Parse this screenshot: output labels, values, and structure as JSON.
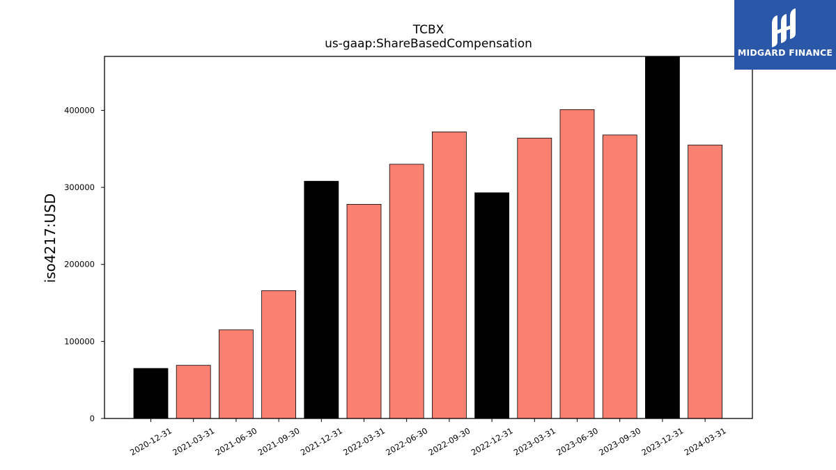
{
  "chart_data": {
    "type": "bar",
    "title": "TCBX",
    "subtitle": "us-gaap:ShareBasedCompensation",
    "ylabel": "iso4217:USD",
    "xlabel": "",
    "ylim": [
      0,
      470000
    ],
    "yticks": [
      0,
      100000,
      200000,
      300000,
      400000
    ],
    "categories": [
      "2020-12-31",
      "2021-03-31",
      "2021-06-30",
      "2021-09-30",
      "2021-12-31",
      "2022-03-31",
      "2022-06-30",
      "2022-09-30",
      "2022-12-31",
      "2023-03-31",
      "2023-06-30",
      "2023-09-30",
      "2023-12-31",
      "2024-03-31"
    ],
    "values": [
      65000,
      69000,
      115000,
      166000,
      308000,
      278000,
      330000,
      372000,
      293000,
      364000,
      401000,
      368000,
      470000,
      355000
    ],
    "bar_colors": [
      "#000000",
      "#fa8072",
      "#fa8072",
      "#fa8072",
      "#000000",
      "#fa8072",
      "#fa8072",
      "#fa8072",
      "#000000",
      "#fa8072",
      "#fa8072",
      "#fa8072",
      "#000000",
      "#fa8072"
    ],
    "grid": false,
    "legend": "none"
  },
  "logo": {
    "text": "MIDGARD FINANCE",
    "icon": "midgard-logo-icon",
    "background": "#2b57a8"
  }
}
